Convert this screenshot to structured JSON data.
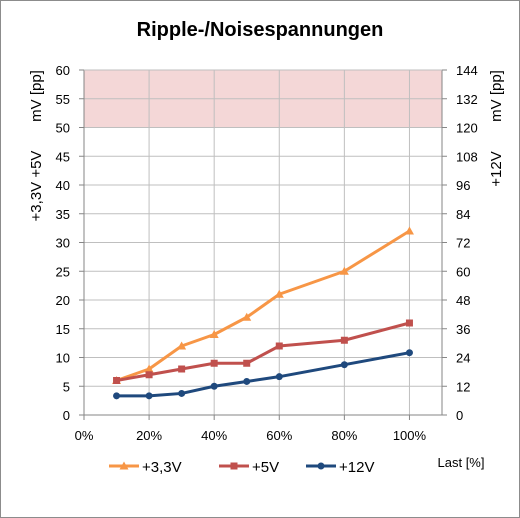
{
  "chart_data": {
    "type": "line",
    "title": "Ripple-/Noisespannungen",
    "x": [
      10,
      20,
      30,
      40,
      50,
      60,
      80,
      100
    ],
    "x_ticks": [
      "0%",
      "20%",
      "40%",
      "60%",
      "80%",
      "100%"
    ],
    "xlim": [
      0,
      110
    ],
    "xlabel": "Last [%]",
    "ylim": [
      0,
      60
    ],
    "y_ticks": [
      "0",
      "5",
      "10",
      "15",
      "20",
      "25",
      "30",
      "35",
      "40",
      "45",
      "50",
      "55",
      "60"
    ],
    "ylabel_left": [
      "mV [pp]",
      "+3,3V +5V"
    ],
    "ylim_right": [
      0,
      144
    ],
    "y2_ticks": [
      "0",
      "12",
      "24",
      "36",
      "48",
      "60",
      "72",
      "84",
      "96",
      "108",
      "120",
      "132",
      "144"
    ],
    "ylabel_right": [
      "mV [pp]",
      "+12V"
    ],
    "limit_band": {
      "from": 50,
      "to": 60,
      "color": "#f4d7d7"
    },
    "grid": true,
    "legend_position": "bottom-left",
    "series": [
      {
        "name": "+3,3V",
        "axis": "left",
        "color": "#f79646",
        "marker": "triangle",
        "values": [
          6,
          8,
          12,
          14,
          17,
          21,
          25,
          32
        ]
      },
      {
        "name": "+5V",
        "axis": "left",
        "color": "#c0504d",
        "marker": "square",
        "values": [
          6,
          7,
          8,
          9,
          9,
          12,
          13,
          16
        ]
      },
      {
        "name": "+12V",
        "axis": "right",
        "color": "#1f497d",
        "marker": "circle",
        "values": [
          8,
          8,
          9,
          12,
          14,
          16,
          21,
          26
        ]
      }
    ]
  }
}
